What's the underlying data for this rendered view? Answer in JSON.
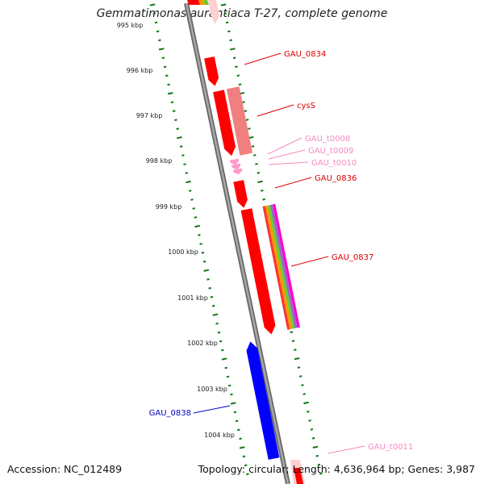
{
  "title": "Gemmatimonas aurantiaca T-27, complete genome",
  "footer": {
    "accession": "Accession: NC_012489",
    "summary": "Topology: circular; Length: 4,636,964 bp; Genes: 3,987"
  },
  "colors": {
    "cds_forward": "#ff0000",
    "cds_forward_pale": "#f08080",
    "cds_reverse": "#0000ff",
    "trna": "#ff99cc",
    "backbone": "#808080",
    "ruler_ticks": "#117711",
    "feature_bands": [
      "#ff3333",
      "#ff9900",
      "#66cc33",
      "#9966cc",
      "#ff00cc"
    ]
  },
  "ruler": {
    "unit": "kbp",
    "labels": [
      "995 kbp",
      "996 kbp",
      "997 kbp",
      "998 kbp",
      "999 kbp",
      "1000 kbp",
      "1001 kbp",
      "1002 kbp",
      "1003 kbp",
      "1004 kbp"
    ]
  },
  "genes": [
    {
      "name": "GAU_0834",
      "color": "#dd0000"
    },
    {
      "name": "cysS",
      "color": "#dd0000"
    },
    {
      "name": "GAU_t0008",
      "color": "#f58ac0"
    },
    {
      "name": "GAU_t0009",
      "color": "#f58ac0"
    },
    {
      "name": "GAU_t0010",
      "color": "#f58ac0"
    },
    {
      "name": "GAU_0836",
      "color": "#dd0000"
    },
    {
      "name": "GAU_0837",
      "color": "#dd0000"
    },
    {
      "name": "GAU_0838",
      "color": "#0000cc"
    },
    {
      "name": "GAU_t0011",
      "color": "#f58ac0"
    }
  ]
}
